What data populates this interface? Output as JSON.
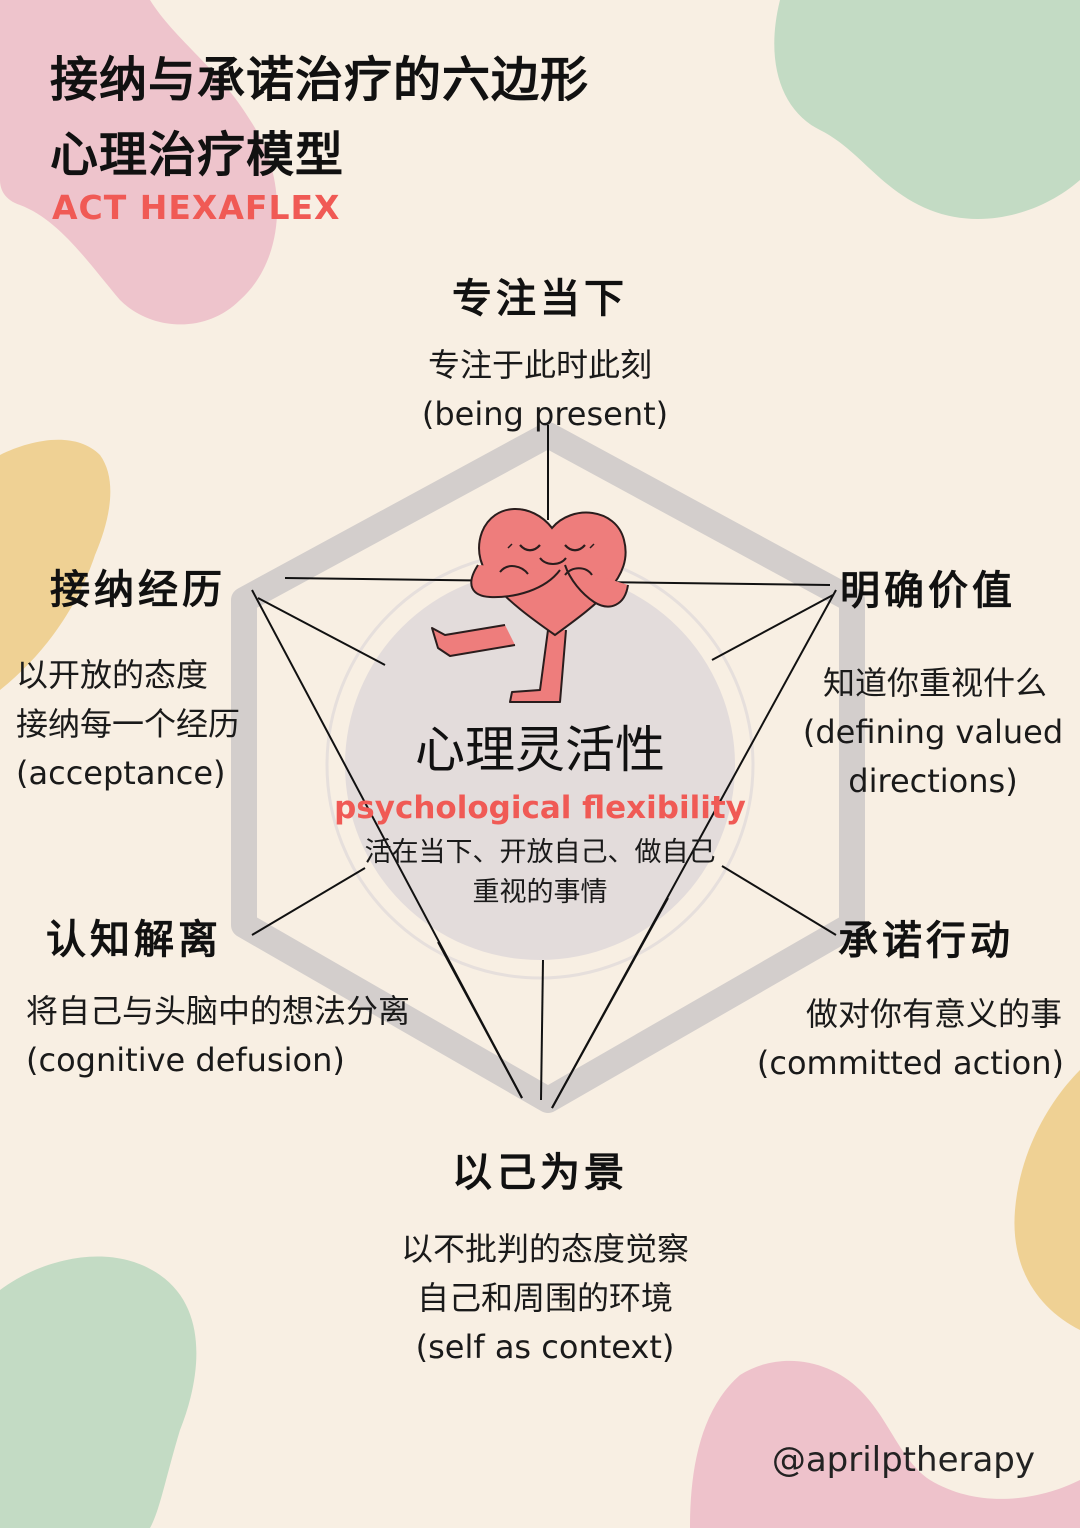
{
  "header": {
    "title_line1": "接纳与承诺治疗的六边形",
    "title_line2": "心理治疗模型",
    "subtitle": "ACT HEXAFLEX"
  },
  "colors": {
    "background": "#f8efe3",
    "accent": "#f05a55",
    "hexagon": "#d3cecc",
    "center_circle": "#e3dcdb",
    "heart": "#ee7d7c",
    "blob_pink": "#ecbcc8",
    "blob_green": "#bdd8c0",
    "blob_yellow": "#ecc97f"
  },
  "center": {
    "icon": "heart-hugging-icon",
    "title_cn": "心理灵活性",
    "title_en": "psychological flexibility",
    "desc_line1": "活在当下、开放自己、做自己",
    "desc_line2": "重视的事情"
  },
  "nodes": {
    "top": {
      "title": "专注当下",
      "desc_cn": "专注于此时此刻",
      "desc_en": "(being present)"
    },
    "upper_left": {
      "title": "接纳经历",
      "desc_cn1": "以开放的态度",
      "desc_cn2": "接纳每一个经历",
      "desc_en": "(acceptance)"
    },
    "upper_right": {
      "title": "明确价值",
      "desc_cn": "知道你重视什么",
      "desc_en1": "(defining valued",
      "desc_en2": "directions)"
    },
    "lower_left": {
      "title": "认知解离",
      "desc_cn": "将自己与头脑中的想法分离",
      "desc_en": "(cognitive defusion)"
    },
    "lower_right": {
      "title": "承诺行动",
      "desc_cn": "做对你有意义的事",
      "desc_en": "(committed action)"
    },
    "bottom": {
      "title": "以己为景",
      "desc_cn1": "以不批判的态度觉察",
      "desc_cn2": "自己和周围的环境",
      "desc_en": "(self as context)"
    }
  },
  "footer": {
    "handle": "@aprilptherapy"
  }
}
